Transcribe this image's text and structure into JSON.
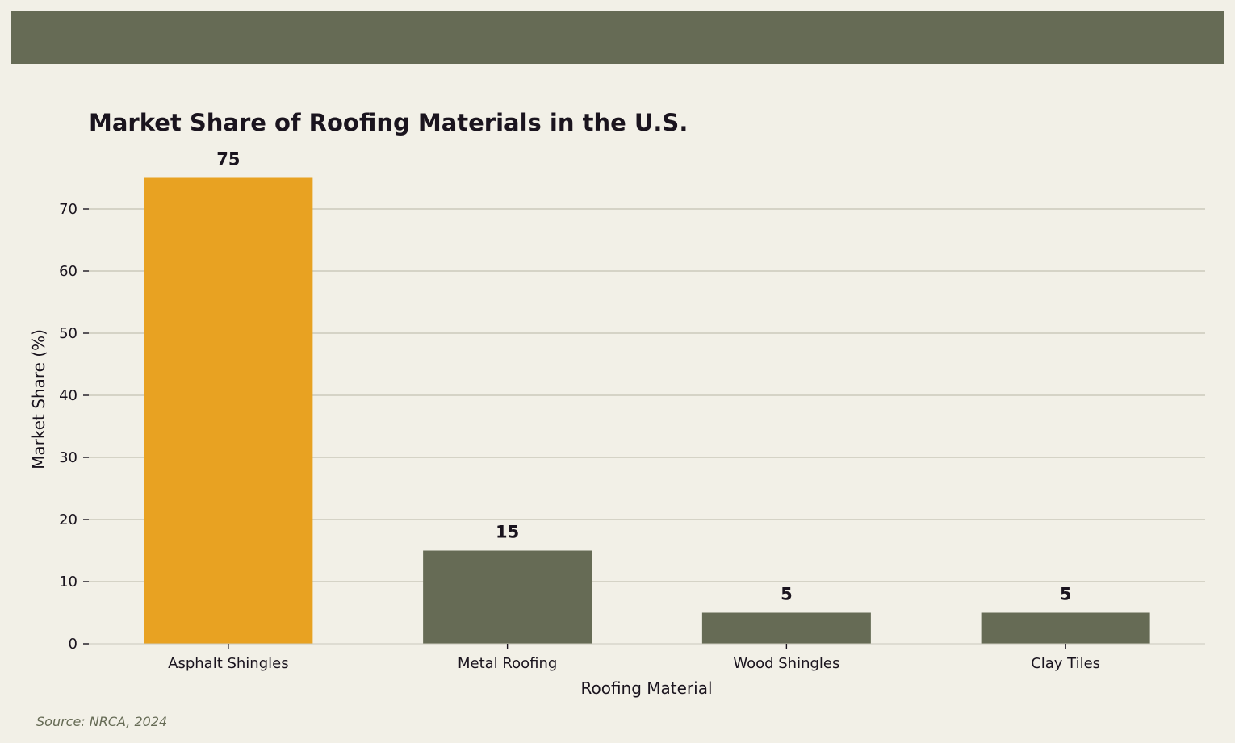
{
  "chart_data": {
    "type": "bar",
    "title": "Market Share of Roofing Materials in the U.S.",
    "xlabel": "Roofing Material",
    "ylabel": "Market Share (%)",
    "categories": [
      "Asphalt Shingles",
      "Metal Roofing",
      "Wood Shingles",
      "Clay Tiles"
    ],
    "values": [
      75,
      15,
      5,
      5
    ],
    "data_labels": [
      "75",
      "15",
      "5",
      "5"
    ],
    "ylim": [
      0,
      75
    ],
    "yticks": [
      0,
      10,
      20,
      30,
      40,
      50,
      60,
      70
    ],
    "grid": "horizontal",
    "legend": "none",
    "colors": {
      "highlight_bar": "#e8a222",
      "bar": "#666b55",
      "grid": "#cbc9bc",
      "text": "#1a141e",
      "header_band": "#666b55",
      "background": "#f2f0e7"
    }
  },
  "footer": {
    "source": "Source: NRCA, 2024"
  }
}
